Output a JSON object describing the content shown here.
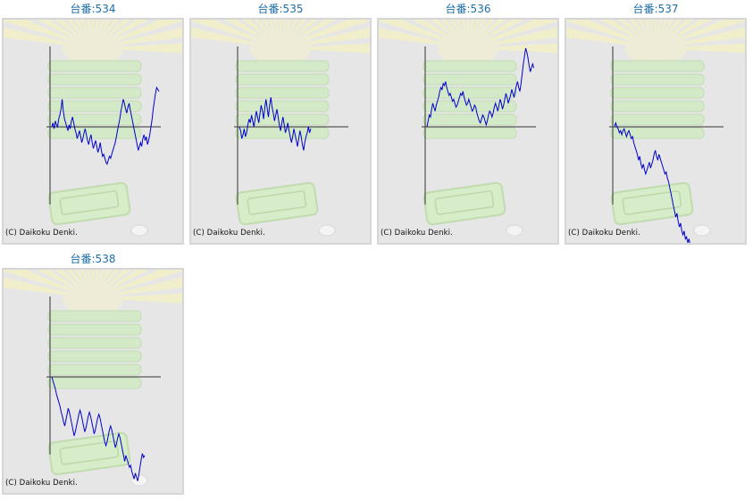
{
  "colors": {
    "title": "#1e6ea8",
    "panel_bg": "#e6e6e6",
    "panel_border": "#d6d6d6",
    "line": "#0000cc",
    "axis": "#333333"
  },
  "copyright": "(C) Daikoku Denki.",
  "cards": [
    {
      "title": "台番:534",
      "chart_data": {
        "type": "line",
        "y": [
          0,
          2,
          -1,
          3,
          1,
          0,
          4,
          6,
          9,
          14,
          8,
          4,
          2,
          0,
          -2,
          1,
          -1,
          3,
          5,
          2,
          -1,
          -3,
          -6,
          -4,
          -2,
          -5,
          -8,
          -6,
          -3,
          -1,
          -4,
          -7,
          -9,
          -6,
          -4,
          -8,
          -11,
          -9,
          -7,
          -10,
          -13,
          -11,
          -8,
          -12,
          -15,
          -14,
          -16,
          -18,
          -19,
          -17,
          -15,
          -16,
          -14,
          -12,
          -10,
          -8,
          -5,
          -2,
          1,
          4,
          8,
          11,
          14,
          12,
          9,
          7,
          10,
          12,
          9,
          6,
          3,
          0,
          -3,
          -6,
          -9,
          -12,
          -10,
          -8,
          -10,
          -6,
          -4,
          -7,
          -5,
          -9,
          -7,
          -4,
          0,
          4,
          9,
          13,
          17,
          20,
          19,
          18
        ]
      }
    },
    {
      "title": "台番:535",
      "chart_data": {
        "type": "line",
        "y": [
          0,
          -2,
          -6,
          -4,
          -1,
          -5,
          -3,
          1,
          4,
          2,
          6,
          3,
          0,
          4,
          8,
          5,
          2,
          7,
          11,
          8,
          4,
          10,
          14,
          9,
          5,
          11,
          15,
          10,
          7,
          3,
          6,
          9,
          5,
          1,
          -2,
          2,
          5,
          1,
          -3,
          -1,
          2,
          -2,
          -5,
          -8,
          -5,
          -1,
          -4,
          -7,
          -10,
          -6,
          -2,
          -5,
          -9,
          -12,
          -8,
          -5,
          -3,
          0,
          -3,
          -1
        ]
      }
    },
    {
      "title": "台番:536",
      "chart_data": {
        "type": "line",
        "y": [
          0,
          3,
          6,
          5,
          9,
          12,
          10,
          8,
          11,
          13,
          15,
          18,
          20,
          19,
          22,
          21,
          23,
          20,
          18,
          16,
          17,
          15,
          13,
          14,
          12,
          10,
          11,
          13,
          15,
          17,
          16,
          18,
          15,
          13,
          11,
          12,
          14,
          12,
          10,
          8,
          9,
          11,
          10,
          7,
          5,
          3,
          2,
          4,
          6,
          5,
          3,
          1,
          3,
          6,
          8,
          7,
          5,
          7,
          10,
          12,
          10,
          8,
          11,
          14,
          12,
          9,
          11,
          14,
          17,
          15,
          12,
          14,
          16,
          19,
          17,
          15,
          18,
          21,
          23,
          20,
          18,
          22,
          27,
          32,
          36,
          40,
          38,
          35,
          31,
          28,
          30,
          32,
          30
        ]
      }
    },
    {
      "title": "台番:537",
      "chart_data": {
        "type": "line",
        "y": [
          0,
          2,
          0,
          -1,
          -3,
          -2,
          -4,
          -2,
          -1,
          -3,
          -5,
          -3,
          -2,
          -4,
          -6,
          -5,
          -8,
          -10,
          -12,
          -14,
          -17,
          -15,
          -19,
          -21,
          -19,
          -22,
          -24,
          -22,
          -20,
          -18,
          -21,
          -19,
          -17,
          -14,
          -12,
          -15,
          -17,
          -14,
          -16,
          -18,
          -20,
          -22,
          -24,
          -23,
          -26,
          -28,
          -31,
          -34,
          -37,
          -40,
          -43,
          -46,
          -44,
          -48,
          -51,
          -49,
          -53,
          -55,
          -53,
          -57,
          -56,
          -59,
          -57,
          -60,
          -62
        ]
      }
    },
    {
      "title": "台番:538",
      "chart_data": {
        "type": "line",
        "y": [
          0,
          -2,
          -4,
          -6,
          -9,
          -11,
          -13,
          -15,
          -18,
          -20,
          -23,
          -25,
          -22,
          -19,
          -16,
          -18,
          -21,
          -24,
          -27,
          -30,
          -28,
          -25,
          -22,
          -19,
          -17,
          -19,
          -22,
          -25,
          -28,
          -26,
          -23,
          -20,
          -18,
          -20,
          -23,
          -26,
          -29,
          -27,
          -24,
          -21,
          -19,
          -21,
          -24,
          -27,
          -30,
          -33,
          -35,
          -33,
          -30,
          -27,
          -25,
          -27,
          -30,
          -33,
          -36,
          -34,
          -31,
          -29,
          -31,
          -34,
          -37,
          -40,
          -43,
          -40,
          -42,
          -44,
          -46,
          -45,
          -48,
          -50,
          -52,
          -49,
          -51,
          -53,
          -50,
          -46,
          -42,
          -39,
          -41,
          -40
        ]
      }
    }
  ]
}
